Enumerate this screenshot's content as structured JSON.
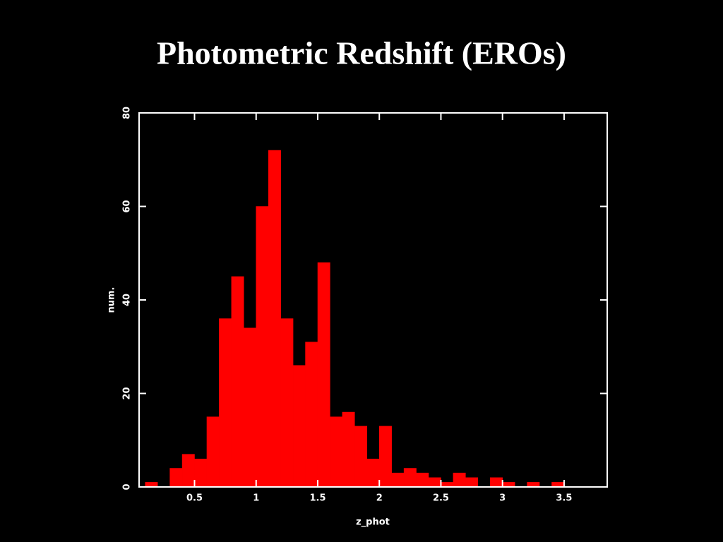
{
  "chart_data": {
    "type": "histogram",
    "title": "Photometric Redshift (EROs)",
    "x_label": "z_phot",
    "y_label": "num.",
    "bins": [
      0.1,
      0.2,
      0.3,
      0.4,
      0.5,
      0.6,
      0.7,
      0.8,
      0.9,
      1.0,
      1.1,
      1.2,
      1.3,
      1.4,
      1.5,
      1.6,
      1.7,
      1.8,
      1.9,
      2.0,
      2.1,
      2.2,
      2.3,
      2.4,
      2.5,
      2.6,
      2.7,
      2.8,
      2.9,
      3.0,
      3.1,
      3.2,
      3.3,
      3.4,
      3.5
    ],
    "values": [
      1,
      0,
      4,
      7,
      6,
      15,
      36,
      45,
      34,
      60,
      72,
      36,
      26,
      31,
      48,
      15,
      16,
      13,
      6,
      13,
      3,
      4,
      3,
      2,
      1,
      3,
      2,
      0,
      2,
      1,
      0,
      1,
      0,
      1
    ],
    "color": "#ff0000",
    "xlim": [
      0.05,
      3.85
    ],
    "ylim": [
      0,
      80
    ],
    "xticks": [
      0.5,
      1,
      1.5,
      2,
      2.5,
      3,
      3.5
    ],
    "yticks": [
      0,
      20,
      40,
      60,
      80
    ]
  }
}
